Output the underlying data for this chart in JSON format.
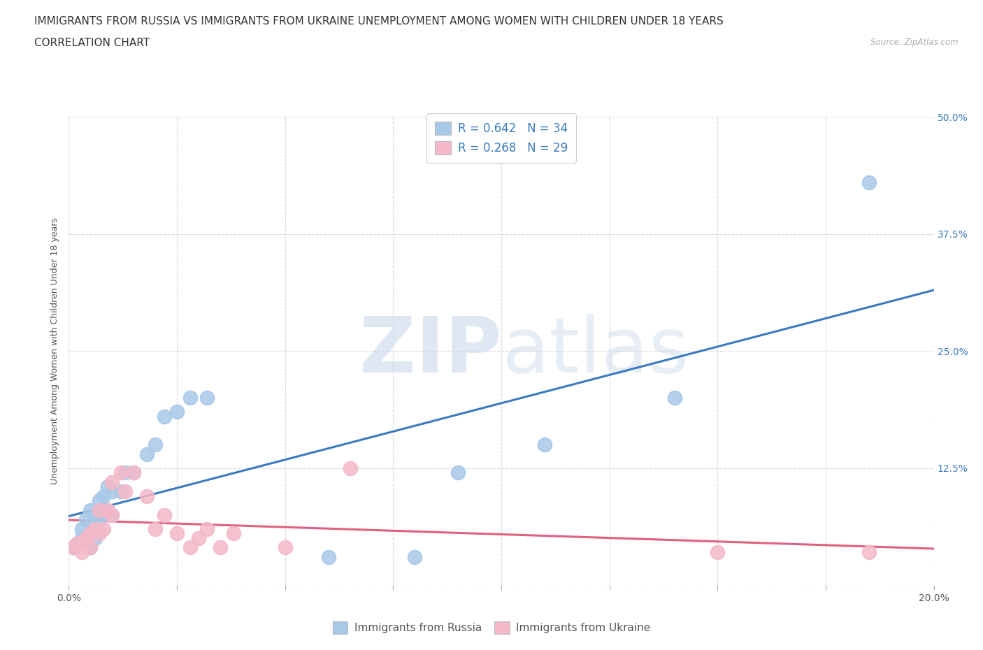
{
  "title": "IMMIGRANTS FROM RUSSIA VS IMMIGRANTS FROM UKRAINE UNEMPLOYMENT AMONG WOMEN WITH CHILDREN UNDER 18 YEARS",
  "subtitle": "CORRELATION CHART",
  "source": "Source: ZipAtlas.com",
  "ylabel": "Unemployment Among Women with Children Under 18 years",
  "xlim": [
    0.0,
    0.2
  ],
  "ylim": [
    0.0,
    0.5
  ],
  "xticks": [
    0.0,
    0.025,
    0.05,
    0.075,
    0.1,
    0.125,
    0.15,
    0.175,
    0.2
  ],
  "yticks": [
    0.0,
    0.125,
    0.25,
    0.375,
    0.5
  ],
  "russia_color": "#a8c8e8",
  "ukraine_color": "#f4b8c8",
  "russia_line_color": "#3a7abf",
  "ukraine_line_color": "#e06080",
  "legend_text_color": "#3a7abf",
  "r_russia": 0.642,
  "n_russia": 34,
  "r_ukraine": 0.268,
  "n_ukraine": 29,
  "russia_x": [
    0.001,
    0.002,
    0.003,
    0.003,
    0.004,
    0.004,
    0.005,
    0.005,
    0.005,
    0.006,
    0.006,
    0.007,
    0.007,
    0.008,
    0.008,
    0.009,
    0.009,
    0.01,
    0.01,
    0.012,
    0.013,
    0.015,
    0.018,
    0.02,
    0.022,
    0.025,
    0.028,
    0.032,
    0.06,
    0.08,
    0.09,
    0.11,
    0.14,
    0.185
  ],
  "russia_y": [
    0.04,
    0.045,
    0.05,
    0.06,
    0.045,
    0.07,
    0.04,
    0.06,
    0.08,
    0.05,
    0.075,
    0.07,
    0.09,
    0.075,
    0.095,
    0.08,
    0.105,
    0.075,
    0.1,
    0.1,
    0.12,
    0.12,
    0.14,
    0.15,
    0.18,
    0.185,
    0.2,
    0.2,
    0.03,
    0.03,
    0.12,
    0.15,
    0.2,
    0.43
  ],
  "ukraine_x": [
    0.001,
    0.002,
    0.003,
    0.004,
    0.005,
    0.005,
    0.006,
    0.007,
    0.007,
    0.008,
    0.009,
    0.01,
    0.01,
    0.012,
    0.013,
    0.015,
    0.018,
    0.02,
    0.022,
    0.025,
    0.028,
    0.03,
    0.032,
    0.035,
    0.038,
    0.05,
    0.065,
    0.15,
    0.185
  ],
  "ukraine_y": [
    0.04,
    0.045,
    0.035,
    0.05,
    0.04,
    0.055,
    0.06,
    0.055,
    0.08,
    0.06,
    0.08,
    0.075,
    0.11,
    0.12,
    0.1,
    0.12,
    0.095,
    0.06,
    0.075,
    0.055,
    0.04,
    0.05,
    0.06,
    0.04,
    0.055,
    0.04,
    0.125,
    0.035,
    0.035
  ],
  "background_color": "#ffffff",
  "grid_color": "#d8d8d8",
  "title_fontsize": 11,
  "subtitle_fontsize": 11,
  "axis_label_fontsize": 9,
  "tick_fontsize": 10
}
